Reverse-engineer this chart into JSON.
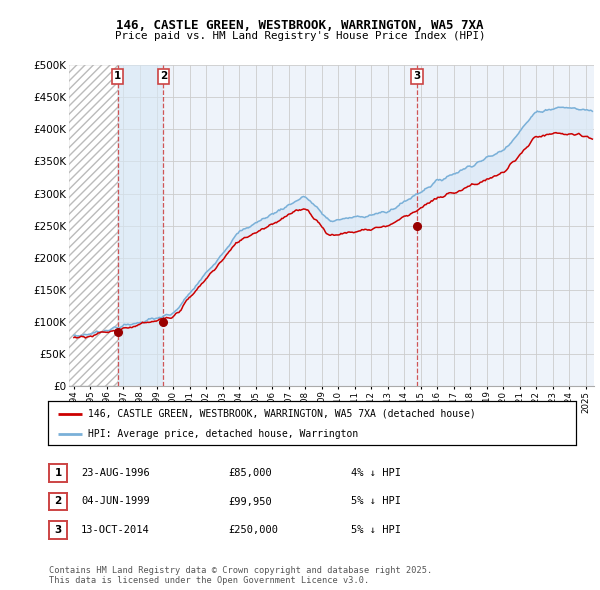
{
  "title_line1": "146, CASTLE GREEN, WESTBROOK, WARRINGTON, WA5 7XA",
  "title_line2": "Price paid vs. HM Land Registry's House Price Index (HPI)",
  "ylabel_ticks": [
    "£0",
    "£50K",
    "£100K",
    "£150K",
    "£200K",
    "£250K",
    "£300K",
    "£350K",
    "£400K",
    "£450K",
    "£500K"
  ],
  "ytick_values": [
    0,
    50000,
    100000,
    150000,
    200000,
    250000,
    300000,
    350000,
    400000,
    450000,
    500000
  ],
  "ylim": [
    0,
    500000
  ],
  "xlim_start": 1993.7,
  "xlim_end": 2025.5,
  "sales": [
    {
      "label": "1",
      "date": 1996.64,
      "price": 85000,
      "hpi_pct": "4% ↓ HPI",
      "date_str": "23-AUG-1996",
      "price_str": "£85,000"
    },
    {
      "label": "2",
      "date": 1999.42,
      "price": 99950,
      "hpi_pct": "5% ↓ HPI",
      "date_str": "04-JUN-1999",
      "price_str": "£99,950"
    },
    {
      "label": "3",
      "date": 2014.79,
      "price": 250000,
      "hpi_pct": "5% ↓ HPI",
      "date_str": "13-OCT-2014",
      "price_str": "£250,000"
    }
  ],
  "sale_marker_color": "#990000",
  "hpi_line_color": "#7ab0d8",
  "hpi_fill_color": "#ddeaf7",
  "between_fill_color": "#ddeaf7",
  "property_line_color": "#cc0000",
  "vline_color": "#cc4444",
  "grid_color": "#cccccc",
  "bg_color": "#eef3fa",
  "hatch_color": "#bbbbbb",
  "legend_label_property": "146, CASTLE GREEN, WESTBROOK, WARRINGTON, WA5 7XA (detached house)",
  "legend_label_hpi": "HPI: Average price, detached house, Warrington",
  "footer_text": "Contains HM Land Registry data © Crown copyright and database right 2025.\nThis data is licensed under the Open Government Licence v3.0.",
  "xtick_years": [
    1994,
    1995,
    1996,
    1997,
    1998,
    1999,
    2000,
    2001,
    2002,
    2003,
    2004,
    2005,
    2006,
    2007,
    2008,
    2009,
    2010,
    2011,
    2012,
    2013,
    2014,
    2015,
    2016,
    2017,
    2018,
    2019,
    2020,
    2021,
    2022,
    2023,
    2024,
    2025
  ]
}
